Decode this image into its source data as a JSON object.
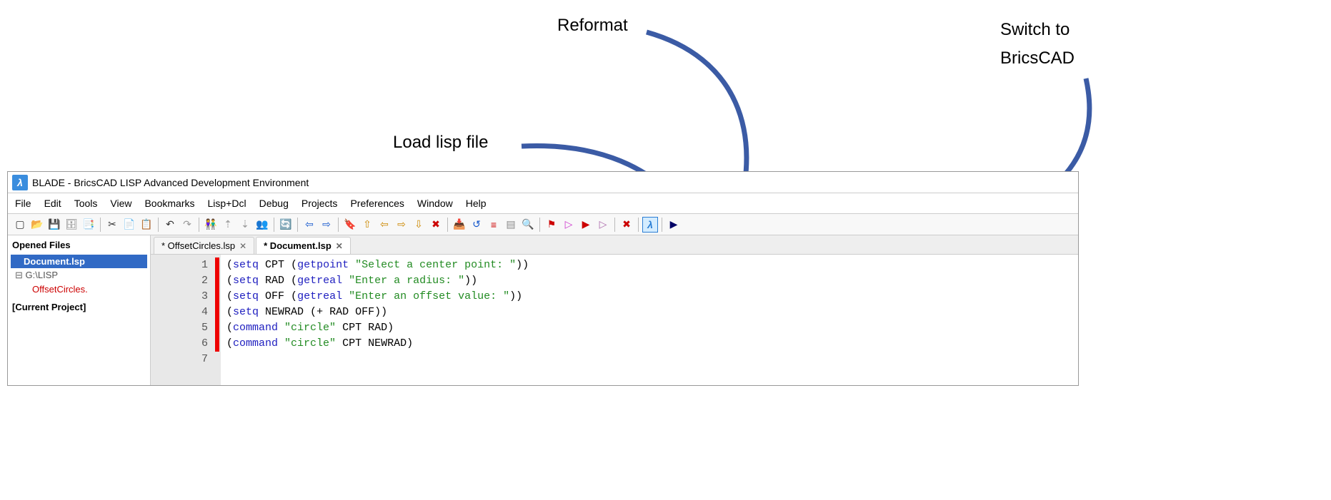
{
  "annotations": {
    "reformat": "Reformat",
    "switch1": "Switch to",
    "switch2": "BricsCAD",
    "loadlisp": "Load lisp file"
  },
  "arrows": {
    "color": "#3b5ba5",
    "stroke_width": 6
  },
  "window": {
    "title": "BLADE - BricsCAD LISP Advanced Development Environment",
    "menus": [
      "File",
      "Edit",
      "Tools",
      "View",
      "Bookmarks",
      "Lisp+Dcl",
      "Debug",
      "Projects",
      "Preferences",
      "Window",
      "Help"
    ]
  },
  "toolbar_groups": [
    [
      {
        "name": "new-icon",
        "glyph": "▢",
        "color": "#333"
      },
      {
        "name": "open-icon",
        "glyph": "📂",
        "color": "#c90"
      },
      {
        "name": "save-icon",
        "glyph": "💾",
        "color": "#555"
      },
      {
        "name": "save-all-icon",
        "glyph": "🗄",
        "color": "#777"
      },
      {
        "name": "saveas-icon",
        "glyph": "📑",
        "color": "#777"
      }
    ],
    [
      {
        "name": "cut-icon",
        "glyph": "✂",
        "color": "#333"
      },
      {
        "name": "copy-icon",
        "glyph": "📄",
        "color": "#555"
      },
      {
        "name": "paste-icon",
        "glyph": "📋",
        "color": "#555"
      }
    ],
    [
      {
        "name": "undo-icon",
        "glyph": "↶",
        "color": "#333"
      },
      {
        "name": "redo-icon",
        "glyph": "↷",
        "color": "#999"
      }
    ],
    [
      {
        "name": "find-icon",
        "glyph": "👫",
        "color": "#333"
      },
      {
        "name": "findnext-icon",
        "glyph": "⇡",
        "color": "#999"
      },
      {
        "name": "findprev-icon",
        "glyph": "⇣",
        "color": "#999"
      },
      {
        "name": "replace-icon",
        "glyph": "👥",
        "color": "#333"
      }
    ],
    [
      {
        "name": "reload-icon",
        "glyph": "🔄",
        "color": "#090"
      }
    ],
    [
      {
        "name": "back-icon",
        "glyph": "⇦",
        "color": "#15c"
      },
      {
        "name": "forward-icon",
        "glyph": "⇨",
        "color": "#15c"
      }
    ],
    [
      {
        "name": "bookmark-add-icon",
        "glyph": "🔖",
        "color": "#090"
      },
      {
        "name": "bookmark-up-icon",
        "glyph": "⇧",
        "color": "#c80"
      },
      {
        "name": "bookmark-left-icon",
        "glyph": "⇦",
        "color": "#c80"
      },
      {
        "name": "bookmark-right-icon",
        "glyph": "⇨",
        "color": "#c80"
      },
      {
        "name": "bookmark-down-icon",
        "glyph": "⇩",
        "color": "#c80"
      },
      {
        "name": "bookmark-del-icon",
        "glyph": "✖",
        "color": "#c00"
      }
    ],
    [
      {
        "name": "load-lisp-icon",
        "glyph": "📥",
        "color": "#15c"
      },
      {
        "name": "check-icon",
        "glyph": "↺",
        "color": "#15c"
      },
      {
        "name": "reformat-icon",
        "glyph": "≡",
        "color": "#c00"
      },
      {
        "name": "form-icon",
        "glyph": "▤",
        "color": "#888"
      },
      {
        "name": "inspect-icon",
        "glyph": "🔍",
        "color": "#333"
      }
    ],
    [
      {
        "name": "breakpoint-toggle-icon",
        "glyph": "⚑",
        "color": "#c00"
      },
      {
        "name": "step-icon",
        "glyph": "▷",
        "color": "#c3c"
      },
      {
        "name": "run-icon",
        "glyph": "▶",
        "color": "#c00"
      },
      {
        "name": "stepover-icon",
        "glyph": "▷",
        "color": "#a6a"
      }
    ],
    [
      {
        "name": "stop-icon",
        "glyph": "✖",
        "color": "#c00"
      }
    ],
    [
      {
        "name": "switch-bricscad-icon",
        "glyph": "λ",
        "color": "#2a7dd4",
        "bg": "#d4ecff"
      }
    ],
    [
      {
        "name": "play-icon",
        "glyph": "▶",
        "color": "#006"
      }
    ]
  ],
  "sidebar": {
    "title": "Opened Files",
    "selected": "Document.lsp",
    "folder": "G:\\LISP",
    "file2": "OffsetCircles.",
    "section2": "[Current Project]"
  },
  "tabs": [
    {
      "label": "* OffsetCircles.lsp",
      "active": false
    },
    {
      "label": "* Document.lsp",
      "active": true
    }
  ],
  "code": {
    "lines": [
      {
        "n": 1,
        "tokens": [
          {
            "t": "paren",
            "v": "("
          },
          {
            "t": "kw",
            "v": "setq"
          },
          {
            "t": "plain",
            "v": " CPT "
          },
          {
            "t": "paren",
            "v": "("
          },
          {
            "t": "kw",
            "v": "getpoint"
          },
          {
            "t": "plain",
            "v": " "
          },
          {
            "t": "str",
            "v": "\"Select a center point: \""
          },
          {
            "t": "paren",
            "v": "))"
          }
        ]
      },
      {
        "n": 2,
        "tokens": [
          {
            "t": "paren",
            "v": "("
          },
          {
            "t": "kw",
            "v": "setq"
          },
          {
            "t": "plain",
            "v": " RAD "
          },
          {
            "t": "paren",
            "v": "("
          },
          {
            "t": "kw",
            "v": "getreal"
          },
          {
            "t": "plain",
            "v": " "
          },
          {
            "t": "str",
            "v": "\"Enter a radius: \""
          },
          {
            "t": "paren",
            "v": "))"
          }
        ]
      },
      {
        "n": 3,
        "tokens": [
          {
            "t": "paren",
            "v": "("
          },
          {
            "t": "kw",
            "v": "setq"
          },
          {
            "t": "plain",
            "v": " OFF "
          },
          {
            "t": "paren",
            "v": "("
          },
          {
            "t": "kw",
            "v": "getreal"
          },
          {
            "t": "plain",
            "v": " "
          },
          {
            "t": "str",
            "v": "\"Enter an offset value: \""
          },
          {
            "t": "paren",
            "v": "))"
          }
        ]
      },
      {
        "n": 4,
        "tokens": [
          {
            "t": "paren",
            "v": "("
          },
          {
            "t": "kw",
            "v": "setq"
          },
          {
            "t": "plain",
            "v": " NEWRAD "
          },
          {
            "t": "paren",
            "v": "("
          },
          {
            "t": "plain",
            "v": "+ RAD OFF"
          },
          {
            "t": "paren",
            "v": "))"
          }
        ]
      },
      {
        "n": 5,
        "tokens": [
          {
            "t": "paren",
            "v": "("
          },
          {
            "t": "kw",
            "v": "command"
          },
          {
            "t": "plain",
            "v": " "
          },
          {
            "t": "str",
            "v": "\"circle\""
          },
          {
            "t": "plain",
            "v": " CPT RAD"
          },
          {
            "t": "paren",
            "v": ")"
          }
        ]
      },
      {
        "n": 6,
        "tokens": [
          {
            "t": "paren",
            "v": "("
          },
          {
            "t": "kw",
            "v": "command"
          },
          {
            "t": "plain",
            "v": " "
          },
          {
            "t": "str",
            "v": "\"circle\""
          },
          {
            "t": "plain",
            "v": " CPT NEWRAD"
          },
          {
            "t": "paren",
            "v": ")"
          }
        ]
      },
      {
        "n": 7,
        "tokens": []
      }
    ],
    "redmark": {
      "from_line": 1,
      "to_line": 6
    }
  }
}
